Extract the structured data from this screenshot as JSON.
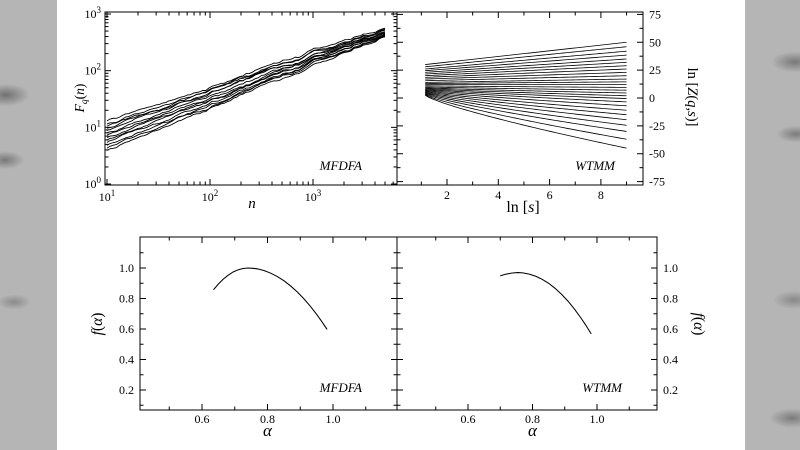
{
  "page": {
    "background_color": "#b5b5b5",
    "panel_color": "#ffffff",
    "line_color": "#000000"
  },
  "chart_data": [
    {
      "id": "mfdfa-fluctuation",
      "type": "line",
      "panel_label": "MFDFA",
      "x_scale": "log",
      "y_scale": "log",
      "xlabel": "n",
      "ylabel": "F_q(n)",
      "xlabel_parts": [
        {
          "t": "n",
          "i": true
        }
      ],
      "ylabel_parts": [
        {
          "t": "F",
          "i": true
        },
        {
          "t": "q",
          "i": true,
          "pos": "sub"
        },
        {
          "t": "(",
          "i": false
        },
        {
          "t": "n",
          "i": true
        },
        {
          "t": ")",
          "i": false
        }
      ],
      "x_tick_exponents": [
        1,
        2,
        3
      ],
      "y_tick_exponents": [
        3,
        2,
        1,
        0
      ],
      "xlim": [
        9.5,
        6500
      ],
      "ylim": [
        1,
        1000
      ],
      "x_data_range": [
        10,
        5000
      ],
      "series": [
        {
          "start": 13.0,
          "end": 560
        },
        {
          "start": 11.5,
          "end": 530
        },
        {
          "start": 10.5,
          "end": 510
        },
        {
          "start": 9.6,
          "end": 495
        },
        {
          "start": 8.8,
          "end": 480
        },
        {
          "start": 8.0,
          "end": 465
        },
        {
          "start": 7.3,
          "end": 450
        },
        {
          "start": 6.6,
          "end": 440
        },
        {
          "start": 6.0,
          "end": 430
        },
        {
          "start": 5.4,
          "end": 420
        },
        {
          "start": 4.8,
          "end": 410
        },
        {
          "start": 4.3,
          "end": 400
        },
        {
          "start": 3.9,
          "end": 392
        }
      ]
    },
    {
      "id": "wtmm-partition",
      "type": "line",
      "panel_label": "WTMM",
      "xlabel": "ln [s]",
      "ylabel": "ln [Z(q,s)]",
      "xlabel_parts": [
        {
          "t": "ln [",
          "i": false
        },
        {
          "t": "s",
          "i": true
        },
        {
          "t": "]",
          "i": false
        }
      ],
      "ylabel_parts": [
        {
          "t": "ln [",
          "i": false
        },
        {
          "t": "Z",
          "i": true
        },
        {
          "t": "(",
          "i": false
        },
        {
          "t": "q",
          "i": true
        },
        {
          "t": ",",
          "i": false
        },
        {
          "t": "s",
          "i": true
        },
        {
          "t": ")]",
          "i": false
        }
      ],
      "x_ticks": [
        {
          "v": 2,
          "label": "2"
        },
        {
          "v": 4,
          "label": "4"
        },
        {
          "v": 6,
          "label": "6"
        },
        {
          "v": 8,
          "label": "8"
        }
      ],
      "y_ticks": [
        {
          "v": 75,
          "label": "75"
        },
        {
          "v": 50,
          "label": "50"
        },
        {
          "v": 25,
          "label": "25"
        },
        {
          "v": 0,
          "label": "0"
        },
        {
          "v": -25,
          "label": "-25"
        },
        {
          "v": -50,
          "label": "-50"
        },
        {
          "v": -75,
          "label": "-75"
        }
      ],
      "xlim": [
        0.2,
        9.6
      ],
      "ylim": [
        -75,
        75
      ],
      "x_data_range": [
        1.15,
        9.0
      ],
      "series": [
        {
          "start": 30,
          "end": 50
        },
        {
          "start": 28,
          "end": 46
        },
        {
          "start": 26,
          "end": 42
        },
        {
          "start": 24.5,
          "end": 38.5
        },
        {
          "start": 23,
          "end": 35
        },
        {
          "start": 21.5,
          "end": 32
        },
        {
          "start": 20,
          "end": 29
        },
        {
          "start": 18.5,
          "end": 26
        },
        {
          "start": 17,
          "end": 23
        },
        {
          "start": 15.5,
          "end": 20
        },
        {
          "start": 14,
          "end": 17
        },
        {
          "start": 13,
          "end": 14.5
        },
        {
          "start": 12,
          "end": 12
        },
        {
          "start": 11,
          "end": 9.5
        },
        {
          "start": 10,
          "end": 7
        },
        {
          "start": 9.2,
          "end": 4.5
        },
        {
          "start": 8.5,
          "end": 2
        },
        {
          "start": 7.8,
          "end": -0.5
        },
        {
          "start": 7.2,
          "end": -3.5
        },
        {
          "start": 6.6,
          "end": -7
        },
        {
          "start": 6,
          "end": -11
        },
        {
          "start": 5.4,
          "end": -15
        },
        {
          "start": 4.8,
          "end": -19.5
        },
        {
          "start": 4.2,
          "end": -24.5
        },
        {
          "start": 3.6,
          "end": -30
        },
        {
          "start": 3,
          "end": -37
        },
        {
          "start": 2.5,
          "end": -45
        }
      ]
    },
    {
      "id": "mfdfa-spectrum",
      "type": "line",
      "panel_label": "MFDFA",
      "xlabel": "α",
      "ylabel": "f(α)",
      "xlabel_parts": [
        {
          "t": "α",
          "i": true
        }
      ],
      "ylabel_parts": [
        {
          "t": "f",
          "i": true
        },
        {
          "t": "(",
          "i": false
        },
        {
          "t": "α",
          "i": true
        },
        {
          "t": ")",
          "i": false
        }
      ],
      "x_ticks": [
        {
          "v": 0.6,
          "label": "0.6"
        },
        {
          "v": 0.8,
          "label": "0.8"
        },
        {
          "v": 1.0,
          "label": "1.0"
        }
      ],
      "y_ticks": [
        {
          "v": 1.0,
          "label": "1.0"
        },
        {
          "v": 0.8,
          "label": "0.8"
        },
        {
          "v": 0.6,
          "label": "0.6"
        },
        {
          "v": 0.4,
          "label": "0.4"
        },
        {
          "v": 0.2,
          "label": "0.2"
        }
      ],
      "xlim": [
        0.41,
        1.2
      ],
      "ylim": [
        0.07,
        1.2
      ],
      "points": [
        [
          0.635,
          0.857
        ],
        [
          0.65,
          0.895
        ],
        [
          0.665,
          0.927
        ],
        [
          0.68,
          0.953
        ],
        [
          0.695,
          0.974
        ],
        [
          0.71,
          0.988
        ],
        [
          0.725,
          0.997
        ],
        [
          0.74,
          1.0
        ],
        [
          0.755,
          0.998
        ],
        [
          0.77,
          0.994
        ],
        [
          0.79,
          0.983
        ],
        [
          0.81,
          0.966
        ],
        [
          0.83,
          0.944
        ],
        [
          0.85,
          0.917
        ],
        [
          0.87,
          0.883
        ],
        [
          0.89,
          0.845
        ],
        [
          0.91,
          0.801
        ],
        [
          0.93,
          0.751
        ],
        [
          0.95,
          0.696
        ],
        [
          0.965,
          0.651
        ],
        [
          0.975,
          0.619
        ],
        [
          0.982,
          0.597
        ]
      ]
    },
    {
      "id": "wtmm-spectrum",
      "type": "line",
      "panel_label": "WTMM",
      "xlabel": "α",
      "ylabel": "f(α)",
      "xlabel_parts": [
        {
          "t": "α",
          "i": true
        }
      ],
      "ylabel_parts": [
        {
          "t": "f",
          "i": true
        },
        {
          "t": "(",
          "i": false
        },
        {
          "t": "α",
          "i": true
        },
        {
          "t": ")",
          "i": false
        }
      ],
      "x_ticks": [
        {
          "v": 0.6,
          "label": "0.6"
        },
        {
          "v": 0.8,
          "label": "0.8"
        },
        {
          "v": 1.0,
          "label": "1.0"
        }
      ],
      "y_ticks": [
        {
          "v": 1.0,
          "label": "1.0"
        },
        {
          "v": 0.8,
          "label": "0.8"
        },
        {
          "v": 0.6,
          "label": "0.6"
        },
        {
          "v": 0.4,
          "label": "0.4"
        },
        {
          "v": 0.2,
          "label": "0.2"
        }
      ],
      "xlim": [
        0.38,
        1.19
      ],
      "ylim": [
        0.07,
        1.2
      ],
      "points": [
        [
          0.7,
          0.948
        ],
        [
          0.715,
          0.958
        ],
        [
          0.73,
          0.965
        ],
        [
          0.745,
          0.969
        ],
        [
          0.755,
          0.97
        ],
        [
          0.77,
          0.968
        ],
        [
          0.79,
          0.96
        ],
        [
          0.81,
          0.946
        ],
        [
          0.83,
          0.926
        ],
        [
          0.85,
          0.9
        ],
        [
          0.87,
          0.867
        ],
        [
          0.89,
          0.828
        ],
        [
          0.91,
          0.783
        ],
        [
          0.93,
          0.731
        ],
        [
          0.95,
          0.673
        ],
        [
          0.965,
          0.626
        ],
        [
          0.975,
          0.592
        ],
        [
          0.982,
          0.568
        ]
      ]
    }
  ]
}
